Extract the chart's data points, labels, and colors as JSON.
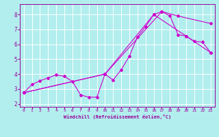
{
  "xlabel": "Windchill (Refroidissement éolien,°C)",
  "bg_color": "#b2eeee",
  "grid_color": "#ffffff",
  "line_color": "#cc00cc",
  "xlim": [
    -0.5,
    23.5
  ],
  "ylim": [
    1.8,
    8.7
  ],
  "xticks": [
    0,
    1,
    2,
    3,
    4,
    5,
    6,
    7,
    8,
    9,
    10,
    11,
    12,
    13,
    14,
    15,
    16,
    17,
    18,
    19,
    20,
    21,
    22,
    23
  ],
  "yticks": [
    2,
    3,
    4,
    5,
    6,
    7,
    8
  ],
  "line1_x": [
    0,
    1,
    2,
    3,
    4,
    5,
    6,
    7,
    8,
    9,
    10,
    11,
    12,
    13,
    14,
    15,
    16,
    17,
    18,
    19,
    20,
    21,
    22,
    23
  ],
  "line1_y": [
    2.75,
    3.3,
    3.55,
    3.75,
    3.95,
    3.85,
    3.5,
    2.6,
    2.45,
    2.45,
    4.0,
    3.6,
    4.3,
    5.2,
    6.5,
    7.2,
    8.0,
    8.2,
    7.9,
    6.65,
    6.55,
    6.2,
    6.15,
    5.45
  ],
  "line2_x": [
    0,
    10,
    17,
    19,
    23
  ],
  "line2_y": [
    2.75,
    4.0,
    8.2,
    7.9,
    7.4
  ],
  "line3_x": [
    0,
    10,
    16,
    20,
    23
  ],
  "line3_y": [
    2.75,
    4.0,
    8.0,
    6.55,
    5.45
  ]
}
